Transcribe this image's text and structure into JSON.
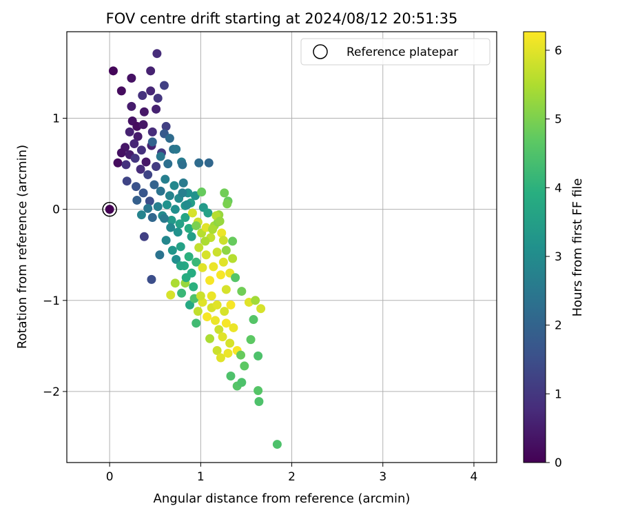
{
  "chart_data": {
    "type": "scatter",
    "title": "FOV centre drift starting at 2024/08/12 20:51:35",
    "xlabel": "Angular distance from reference (arcmin)",
    "ylabel": "Rotation from reference (arcmin)",
    "xlim": [
      -0.47,
      4.25
    ],
    "ylim": [
      -2.78,
      1.95
    ],
    "xticks": [
      0,
      1,
      2,
      3,
      4
    ],
    "xtick_labels": [
      "0",
      "1",
      "2",
      "3",
      "4"
    ],
    "yticks": [
      -2,
      -1,
      0,
      1
    ],
    "ytick_labels": [
      "−2",
      "−1",
      "0",
      "1"
    ],
    "grid": true,
    "legend": {
      "position": "top-right",
      "entries": [
        "Reference platepar"
      ]
    },
    "reference_point": {
      "x": 0,
      "y": 0,
      "label": "Reference platepar"
    },
    "colorbar": {
      "label": "Hours from first FF file",
      "min": 0,
      "max": 6.27,
      "ticks": [
        0,
        1,
        2,
        3,
        4,
        5,
        6
      ],
      "tick_labels": [
        "0",
        "1",
        "2",
        "3",
        "4",
        "5",
        "6"
      ],
      "colormap": "viridis"
    },
    "series": [
      {
        "name": "FOV centre drift",
        "points": [
          [
            0.04,
            1.52,
            0.1
          ],
          [
            0.52,
            1.71,
            0.8
          ],
          [
            0.45,
            1.52,
            0.6
          ],
          [
            0.24,
            1.44,
            0.3
          ],
          [
            0.13,
            1.3,
            0.2
          ],
          [
            0.36,
            1.25,
            0.9
          ],
          [
            0.24,
            1.13,
            0.5
          ],
          [
            0.38,
            1.07,
            0.4
          ],
          [
            0.45,
            1.3,
            0.7
          ],
          [
            0.53,
            1.22,
            1.0
          ],
          [
            0.6,
            1.36,
            1.2
          ],
          [
            0.51,
            1.1,
            0.6
          ],
          [
            0.25,
            0.97,
            0.3
          ],
          [
            0.3,
            0.91,
            0.2
          ],
          [
            0.37,
            0.93,
            0.4
          ],
          [
            0.47,
            0.85,
            0.8
          ],
          [
            0.22,
            0.85,
            0.6
          ],
          [
            0.31,
            0.8,
            0.5
          ],
          [
            0.27,
            0.72,
            0.7
          ],
          [
            0.17,
            0.68,
            0.4
          ],
          [
            0.13,
            0.62,
            0.3
          ],
          [
            0.09,
            0.51,
            0.2
          ],
          [
            0.22,
            0.6,
            0.5
          ],
          [
            0.35,
            0.65,
            0.9
          ],
          [
            0.46,
            0.7,
            0.6
          ],
          [
            0.4,
            0.52,
            0.4
          ],
          [
            0.57,
            0.62,
            1.1
          ],
          [
            0.62,
            0.91,
            1.2
          ],
          [
            0.18,
            0.49,
            0.9
          ],
          [
            0.28,
            0.56,
            1.0
          ],
          [
            0.34,
            0.44,
            0.8
          ],
          [
            0.42,
            0.38,
            1.3
          ],
          [
            0.51,
            0.47,
            1.1
          ],
          [
            0.6,
            0.83,
            1.8
          ],
          [
            0.66,
            0.78,
            2.2
          ],
          [
            0.7,
            0.66,
            2.4
          ],
          [
            0.47,
            0.74,
            2.0
          ],
          [
            0.56,
            0.58,
            2.5
          ],
          [
            0.64,
            0.5,
            2.3
          ],
          [
            0.79,
            0.52,
            2.6
          ],
          [
            0.8,
            0.49,
            2.3
          ],
          [
            0.73,
            0.66,
            2.5
          ],
          [
            0.98,
            0.51,
            2.2
          ],
          [
            1.09,
            0.51,
            2.1
          ],
          [
            0.19,
            0.31,
            1.3
          ],
          [
            0.29,
            0.25,
            1.6
          ],
          [
            0.37,
            0.18,
            1.7
          ],
          [
            0.44,
            0.09,
            1.5
          ],
          [
            0.49,
            0.27,
            2.0
          ],
          [
            0.56,
            0.2,
            2.4
          ],
          [
            0.61,
            0.33,
            2.7
          ],
          [
            0.66,
            0.15,
            2.8
          ],
          [
            0.71,
            0.26,
            2.9
          ],
          [
            0.76,
            0.12,
            3.0
          ],
          [
            0.81,
            0.29,
            2.6
          ],
          [
            0.86,
            0.18,
            3.1
          ],
          [
            0.83,
            0.04,
            3.3
          ],
          [
            0.89,
            0.07,
            3.5
          ],
          [
            0.94,
            0.15,
            3.2
          ],
          [
            1.01,
            0.19,
            4.8
          ],
          [
            1.03,
            0.02,
            3.4
          ],
          [
            1.08,
            -0.04,
            3.6
          ],
          [
            0.3,
            0.1,
            1.9
          ],
          [
            0.35,
            -0.06,
            2.8
          ],
          [
            0.42,
            0.01,
            2.5
          ],
          [
            0.47,
            -0.09,
            2.1
          ],
          [
            0.53,
            0.03,
            2.7
          ],
          [
            0.58,
            -0.07,
            3.0
          ],
          [
            0.63,
            0.05,
            3.2
          ],
          [
            0.68,
            -0.12,
            3.4
          ],
          [
            0.72,
            0.0,
            3.1
          ],
          [
            0.77,
            -0.16,
            3.6
          ],
          [
            0.83,
            -0.09,
            3.7
          ],
          [
            0.87,
            -0.21,
            3.9
          ],
          [
            0.91,
            -0.04,
            5.9
          ],
          [
            0.97,
            -0.14,
            5.8
          ],
          [
            1.01,
            -0.26,
            5.6
          ],
          [
            1.06,
            -0.2,
            6.0
          ],
          [
            1.11,
            -0.31,
            5.7
          ],
          [
            1.15,
            -0.18,
            5.4
          ],
          [
            1.2,
            -0.06,
            5.3
          ],
          [
            1.23,
            -0.26,
            6.1
          ],
          [
            0.38,
            -0.3,
            1.2
          ],
          [
            0.46,
            -0.77,
            1.5
          ],
          [
            0.55,
            -0.5,
            2.4
          ],
          [
            0.62,
            -0.34,
            2.9
          ],
          [
            0.69,
            -0.45,
            3.3
          ],
          [
            0.73,
            -0.55,
            3.1
          ],
          [
            0.78,
            -0.41,
            3.6
          ],
          [
            0.82,
            -0.62,
            3.8
          ],
          [
            0.87,
            -0.52,
            4.0
          ],
          [
            0.9,
            -0.7,
            3.9
          ],
          [
            0.95,
            -0.58,
            4.2
          ],
          [
            0.98,
            -0.42,
            5.7
          ],
          [
            1.02,
            -0.64,
            6.0
          ],
          [
            1.06,
            -0.5,
            5.9
          ],
          [
            1.1,
            -0.78,
            6.2
          ],
          [
            1.14,
            -0.63,
            6.1
          ],
          [
            1.18,
            -0.47,
            5.8
          ],
          [
            1.22,
            -0.72,
            6.2
          ],
          [
            1.25,
            -0.58,
            6.0
          ],
          [
            1.28,
            -0.88,
            5.9
          ],
          [
            1.32,
            -0.7,
            6.1
          ],
          [
            1.35,
            -0.54,
            5.6
          ],
          [
            1.13,
            -0.22,
            5.5
          ],
          [
            1.19,
            -0.14,
            5.2
          ],
          [
            1.25,
            -0.34,
            5.8
          ],
          [
            0.83,
            -0.81,
            5.3
          ],
          [
            0.72,
            -0.81,
            5.5
          ],
          [
            0.67,
            -0.94,
            5.9
          ],
          [
            0.79,
            -0.92,
            4.2
          ],
          [
            0.88,
            -1.05,
            3.8
          ],
          [
            0.93,
            -0.98,
            4.5
          ],
          [
            0.97,
            -1.12,
            5.7
          ],
          [
            1.02,
            -1.02,
            6.0
          ],
          [
            1.07,
            -1.18,
            6.2
          ],
          [
            1.12,
            -1.08,
            5.9
          ],
          [
            1.16,
            -1.22,
            6.1
          ],
          [
            1.2,
            -1.32,
            5.8
          ],
          [
            1.24,
            -1.4,
            6.0
          ],
          [
            1.28,
            -1.25,
            6.2
          ],
          [
            1.32,
            -1.47,
            5.9
          ],
          [
            1.36,
            -1.3,
            6.1
          ],
          [
            1.4,
            -1.55,
            6.2
          ],
          [
            1.44,
            -1.6,
            4.8
          ],
          [
            1.48,
            -1.72,
            4.7
          ],
          [
            1.53,
            -1.02,
            6.0
          ],
          [
            1.58,
            -1.21,
            4.6
          ],
          [
            1.63,
            -1.61,
            4.5
          ],
          [
            1.66,
            -1.09,
            5.9
          ],
          [
            1.6,
            -1.0,
            5.4
          ],
          [
            1.45,
            -0.9,
            4.9
          ],
          [
            1.38,
            -0.75,
            4.6
          ],
          [
            1.28,
            -0.45,
            5.2
          ],
          [
            1.35,
            -0.35,
            4.8
          ],
          [
            1.33,
            -1.83,
            4.5
          ],
          [
            1.4,
            -1.94,
            4.6
          ],
          [
            1.45,
            -1.9,
            4.5
          ],
          [
            1.63,
            -1.99,
            4.6
          ],
          [
            1.64,
            -2.11,
            4.5
          ],
          [
            1.84,
            -2.58,
            4.5
          ],
          [
            1.55,
            -1.43,
            4.7
          ],
          [
            1.18,
            -1.55,
            5.8
          ],
          [
            1.22,
            -1.63,
            6.0
          ],
          [
            1.3,
            -1.58,
            6.1
          ],
          [
            0.95,
            -1.25,
            4.3
          ],
          [
            1.1,
            -1.42,
            5.5
          ],
          [
            1.26,
            0.18,
            4.9
          ],
          [
            1.3,
            0.09,
            4.8
          ],
          [
            1.29,
            0.06,
            5.0
          ],
          [
            1.17,
            -0.07,
            5.6
          ],
          [
            1.21,
            -0.13,
            5.3
          ],
          [
            0.85,
            0.05,
            3.0
          ],
          [
            0.8,
            0.18,
            2.7
          ],
          [
            0.9,
            -0.3,
            3.5
          ],
          [
            0.75,
            -0.25,
            3.2
          ],
          [
            0.67,
            -0.2,
            2.9
          ],
          [
            0.6,
            -0.1,
            2.6
          ],
          [
            0.92,
            -0.85,
            4.0
          ],
          [
            0.84,
            -0.75,
            3.9
          ],
          [
            0.78,
            -0.62,
            3.7
          ],
          [
            0.95,
            -0.18,
            5.0
          ],
          [
            1.05,
            -0.35,
            5.5
          ],
          [
            1.0,
            -0.95,
            5.8
          ],
          [
            1.12,
            -0.95,
            6.1
          ],
          [
            1.18,
            -1.05,
            6.0
          ],
          [
            1.26,
            -1.12,
            5.9
          ],
          [
            1.33,
            -1.05,
            6.2
          ]
        ]
      }
    ]
  }
}
